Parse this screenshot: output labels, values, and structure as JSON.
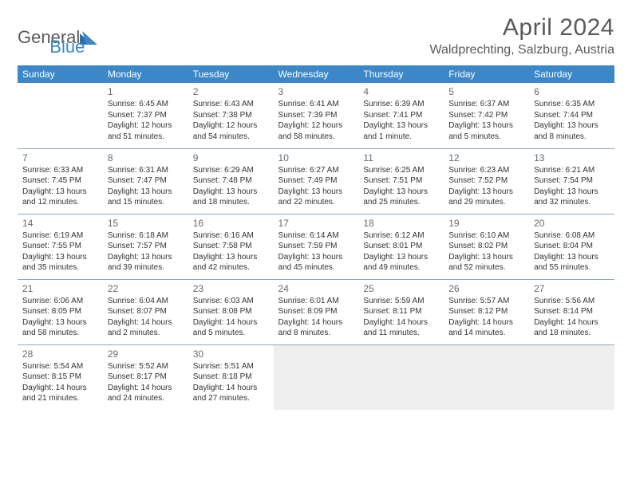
{
  "logo": {
    "word1": "General",
    "word2": "Blue",
    "tri_color": "#2f6fa8"
  },
  "header": {
    "title": "April 2024",
    "location": "Waldprechting, Salzburg, Austria"
  },
  "colors": {
    "header_bg": "#3b87c8",
    "header_text": "#ffffff",
    "rule": "#88a8c4",
    "text": "#333333",
    "daynum": "#6a6a6a",
    "empty_cell": "#efefef"
  },
  "weekdays": [
    "Sunday",
    "Monday",
    "Tuesday",
    "Wednesday",
    "Thursday",
    "Friday",
    "Saturday"
  ],
  "grid": [
    [
      {
        "blank": "leading"
      },
      {
        "n": "1",
        "sr": "Sunrise: 6:45 AM",
        "ss": "Sunset: 7:37 PM",
        "d1": "Daylight: 12 hours",
        "d2": "and 51 minutes."
      },
      {
        "n": "2",
        "sr": "Sunrise: 6:43 AM",
        "ss": "Sunset: 7:38 PM",
        "d1": "Daylight: 12 hours",
        "d2": "and 54 minutes."
      },
      {
        "n": "3",
        "sr": "Sunrise: 6:41 AM",
        "ss": "Sunset: 7:39 PM",
        "d1": "Daylight: 12 hours",
        "d2": "and 58 minutes."
      },
      {
        "n": "4",
        "sr": "Sunrise: 6:39 AM",
        "ss": "Sunset: 7:41 PM",
        "d1": "Daylight: 13 hours",
        "d2": "and 1 minute."
      },
      {
        "n": "5",
        "sr": "Sunrise: 6:37 AM",
        "ss": "Sunset: 7:42 PM",
        "d1": "Daylight: 13 hours",
        "d2": "and 5 minutes."
      },
      {
        "n": "6",
        "sr": "Sunrise: 6:35 AM",
        "ss": "Sunset: 7:44 PM",
        "d1": "Daylight: 13 hours",
        "d2": "and 8 minutes."
      }
    ],
    [
      {
        "n": "7",
        "sr": "Sunrise: 6:33 AM",
        "ss": "Sunset: 7:45 PM",
        "d1": "Daylight: 13 hours",
        "d2": "and 12 minutes."
      },
      {
        "n": "8",
        "sr": "Sunrise: 6:31 AM",
        "ss": "Sunset: 7:47 PM",
        "d1": "Daylight: 13 hours",
        "d2": "and 15 minutes."
      },
      {
        "n": "9",
        "sr": "Sunrise: 6:29 AM",
        "ss": "Sunset: 7:48 PM",
        "d1": "Daylight: 13 hours",
        "d2": "and 18 minutes."
      },
      {
        "n": "10",
        "sr": "Sunrise: 6:27 AM",
        "ss": "Sunset: 7:49 PM",
        "d1": "Daylight: 13 hours",
        "d2": "and 22 minutes."
      },
      {
        "n": "11",
        "sr": "Sunrise: 6:25 AM",
        "ss": "Sunset: 7:51 PM",
        "d1": "Daylight: 13 hours",
        "d2": "and 25 minutes."
      },
      {
        "n": "12",
        "sr": "Sunrise: 6:23 AM",
        "ss": "Sunset: 7:52 PM",
        "d1": "Daylight: 13 hours",
        "d2": "and 29 minutes."
      },
      {
        "n": "13",
        "sr": "Sunrise: 6:21 AM",
        "ss": "Sunset: 7:54 PM",
        "d1": "Daylight: 13 hours",
        "d2": "and 32 minutes."
      }
    ],
    [
      {
        "n": "14",
        "sr": "Sunrise: 6:19 AM",
        "ss": "Sunset: 7:55 PM",
        "d1": "Daylight: 13 hours",
        "d2": "and 35 minutes."
      },
      {
        "n": "15",
        "sr": "Sunrise: 6:18 AM",
        "ss": "Sunset: 7:57 PM",
        "d1": "Daylight: 13 hours",
        "d2": "and 39 minutes."
      },
      {
        "n": "16",
        "sr": "Sunrise: 6:16 AM",
        "ss": "Sunset: 7:58 PM",
        "d1": "Daylight: 13 hours",
        "d2": "and 42 minutes."
      },
      {
        "n": "17",
        "sr": "Sunrise: 6:14 AM",
        "ss": "Sunset: 7:59 PM",
        "d1": "Daylight: 13 hours",
        "d2": "and 45 minutes."
      },
      {
        "n": "18",
        "sr": "Sunrise: 6:12 AM",
        "ss": "Sunset: 8:01 PM",
        "d1": "Daylight: 13 hours",
        "d2": "and 49 minutes."
      },
      {
        "n": "19",
        "sr": "Sunrise: 6:10 AM",
        "ss": "Sunset: 8:02 PM",
        "d1": "Daylight: 13 hours",
        "d2": "and 52 minutes."
      },
      {
        "n": "20",
        "sr": "Sunrise: 6:08 AM",
        "ss": "Sunset: 8:04 PM",
        "d1": "Daylight: 13 hours",
        "d2": "and 55 minutes."
      }
    ],
    [
      {
        "n": "21",
        "sr": "Sunrise: 6:06 AM",
        "ss": "Sunset: 8:05 PM",
        "d1": "Daylight: 13 hours",
        "d2": "and 58 minutes."
      },
      {
        "n": "22",
        "sr": "Sunrise: 6:04 AM",
        "ss": "Sunset: 8:07 PM",
        "d1": "Daylight: 14 hours",
        "d2": "and 2 minutes."
      },
      {
        "n": "23",
        "sr": "Sunrise: 6:03 AM",
        "ss": "Sunset: 8:08 PM",
        "d1": "Daylight: 14 hours",
        "d2": "and 5 minutes."
      },
      {
        "n": "24",
        "sr": "Sunrise: 6:01 AM",
        "ss": "Sunset: 8:09 PM",
        "d1": "Daylight: 14 hours",
        "d2": "and 8 minutes."
      },
      {
        "n": "25",
        "sr": "Sunrise: 5:59 AM",
        "ss": "Sunset: 8:11 PM",
        "d1": "Daylight: 14 hours",
        "d2": "and 11 minutes."
      },
      {
        "n": "26",
        "sr": "Sunrise: 5:57 AM",
        "ss": "Sunset: 8:12 PM",
        "d1": "Daylight: 14 hours",
        "d2": "and 14 minutes."
      },
      {
        "n": "27",
        "sr": "Sunrise: 5:56 AM",
        "ss": "Sunset: 8:14 PM",
        "d1": "Daylight: 14 hours",
        "d2": "and 18 minutes."
      }
    ],
    [
      {
        "n": "28",
        "sr": "Sunrise: 5:54 AM",
        "ss": "Sunset: 8:15 PM",
        "d1": "Daylight: 14 hours",
        "d2": "and 21 minutes."
      },
      {
        "n": "29",
        "sr": "Sunrise: 5:52 AM",
        "ss": "Sunset: 8:17 PM",
        "d1": "Daylight: 14 hours",
        "d2": "and 24 minutes."
      },
      {
        "n": "30",
        "sr": "Sunrise: 5:51 AM",
        "ss": "Sunset: 8:18 PM",
        "d1": "Daylight: 14 hours",
        "d2": "and 27 minutes."
      },
      {
        "blank": "trailing"
      },
      {
        "blank": "trailing"
      },
      {
        "blank": "trailing"
      },
      {
        "blank": "trailing"
      }
    ]
  ]
}
